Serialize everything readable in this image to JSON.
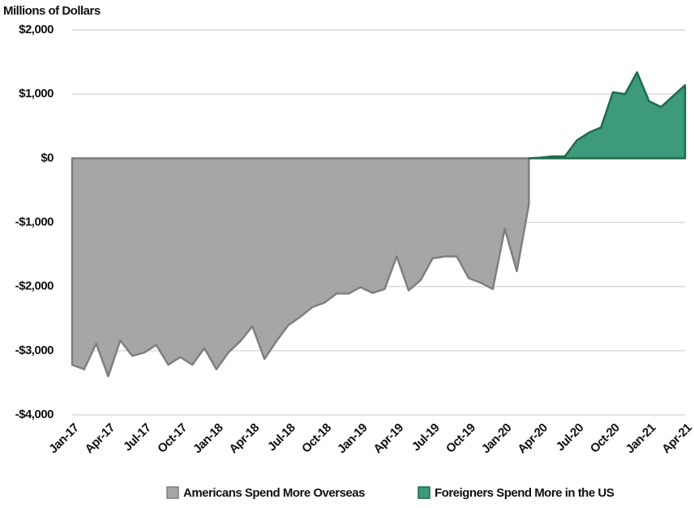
{
  "chart_data": {
    "type": "area",
    "y_axis_label": "Millions of Dollars",
    "categories": [
      "Jan-17",
      null,
      null,
      "Apr-17",
      null,
      null,
      "Jul-17",
      null,
      null,
      "Oct-17",
      null,
      null,
      "Jan-18",
      null,
      null,
      "Apr-18",
      null,
      null,
      "Jul-18",
      null,
      null,
      "Oct-18",
      null,
      null,
      "Jan-19",
      null,
      null,
      "Apr-19",
      null,
      null,
      "Jul-19",
      null,
      null,
      "Oct-19",
      null,
      null,
      "Jan-20",
      null,
      null,
      "Apr-20",
      null,
      null,
      "Jul-20",
      null,
      null,
      "Oct-20",
      null,
      null,
      "Jan-21",
      null,
      null,
      "Apr-21"
    ],
    "series": [
      {
        "name": "Americans Spend More Overseas",
        "color": "#a6a6a6",
        "line_color": "#7f7f7f",
        "values": [
          -3220,
          -3290,
          -2890,
          -3400,
          -2840,
          -3080,
          -3030,
          -2910,
          -3220,
          -3100,
          -3220,
          -2960,
          -3290,
          -3030,
          -2850,
          -2620,
          -3130,
          -2850,
          -2600,
          -2470,
          -2320,
          -2250,
          -2110,
          -2110,
          -2010,
          -2100,
          -2040,
          -1530,
          -2060,
          -1900,
          -1560,
          -1530,
          -1530,
          -1870,
          -1940,
          -2040,
          -1100,
          -1760,
          -720,
          null,
          null,
          null,
          null,
          null,
          null,
          null,
          null,
          null,
          null,
          null,
          null,
          null
        ]
      },
      {
        "name": "Foreigners Spend More in the US",
        "color": "#3d9a7a",
        "line_color": "#1e6b4a",
        "values": [
          null,
          null,
          null,
          null,
          null,
          null,
          null,
          null,
          null,
          null,
          null,
          null,
          null,
          null,
          null,
          null,
          null,
          null,
          null,
          null,
          null,
          null,
          null,
          null,
          null,
          null,
          null,
          null,
          null,
          null,
          null,
          null,
          null,
          null,
          null,
          null,
          null,
          null,
          0,
          10,
          30,
          30,
          280,
          400,
          480,
          1030,
          1000,
          1340,
          890,
          800,
          970,
          1140
        ]
      }
    ],
    "ylim": [
      -4000,
      2000
    ],
    "yticks": [
      {
        "value": -4000,
        "label": "-$4,000"
      },
      {
        "value": -3000,
        "label": "-$3,000"
      },
      {
        "value": -2000,
        "label": "-$2,000"
      },
      {
        "value": -1000,
        "label": "-$1,000"
      },
      {
        "value": 0,
        "label": "$0"
      },
      {
        "value": 1000,
        "label": "$1,000"
      },
      {
        "value": 2000,
        "label": "$2,000"
      }
    ],
    "grid": true,
    "legend": "bottom"
  }
}
